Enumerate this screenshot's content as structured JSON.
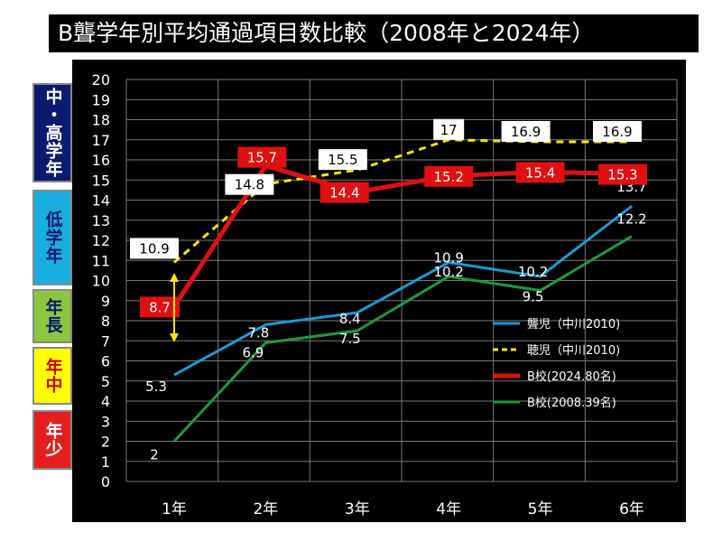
{
  "title": "B聾学年別平均通過項目数比較（2008年と2024年）",
  "side_labels": [
    {
      "text": "中・高学年",
      "bg": "#0a1a6e",
      "color": "#ffffff"
    },
    {
      "text": "低学年",
      "bg": "#19aee0",
      "color": "#0a1a6e"
    },
    {
      "text": "年長",
      "bg": "#8cc63f",
      "color": "#0a1a6e"
    },
    {
      "text": "年中",
      "bg": "#ffff00",
      "color": "#cc0000"
    },
    {
      "text": "年少",
      "bg": "#e41e1e",
      "color": "#ffffff"
    }
  ],
  "colors": {
    "background": "#000000",
    "deaf": "#1a9ad6",
    "hearing": "#ffe600",
    "b2024": "#e01010",
    "b2008": "#1e9a3c",
    "arrow": "#ffe600"
  },
  "chart_data": {
    "type": "line",
    "categories": [
      "1年",
      "2年",
      "3年",
      "4年",
      "5年",
      "6年"
    ],
    "ylim": [
      0,
      20
    ],
    "yticks": [
      0,
      1,
      2,
      3,
      4,
      5,
      6,
      7,
      8,
      9,
      10,
      11,
      12,
      13,
      14,
      15,
      16,
      17,
      18,
      19,
      20
    ],
    "grid": true,
    "legend_position": "right",
    "series": [
      {
        "name": "聾児（中川2010)",
        "values": [
          5.3,
          7.8,
          8.4,
          10.9,
          10.2,
          13.7
        ],
        "color": "#1a9ad6",
        "style": "solid",
        "label_style": "plain"
      },
      {
        "name": "聴児（中川2010)",
        "values": [
          10.9,
          14.8,
          15.5,
          17,
          16.9,
          16.9
        ],
        "color": "#ffe600",
        "style": "dashed",
        "label_style": "boxed-white"
      },
      {
        "name": "B校(2024.80名)",
        "values": [
          8.7,
          15.7,
          14.4,
          15.2,
          15.4,
          15.3
        ],
        "color": "#e01010",
        "style": "solid",
        "label_style": "boxed-red"
      },
      {
        "name": "B校(2008.39名)",
        "values": [
          2,
          6.9,
          7.5,
          10.2,
          9.5,
          12.2
        ],
        "color": "#1e9a3c",
        "style": "solid",
        "label_style": "plain"
      }
    ]
  }
}
